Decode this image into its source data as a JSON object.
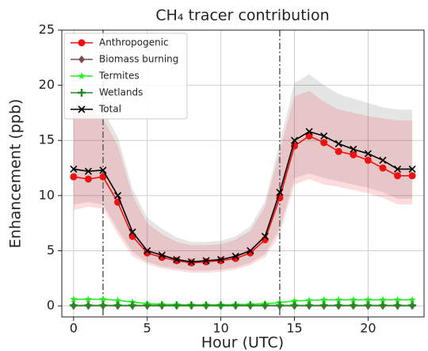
{
  "chart_data": {
    "type": "line",
    "title": "CH₄ tracer contribution",
    "x_label": "Hour (UTC)",
    "y_label": "Enhancement (ppb)",
    "x": [
      0,
      1,
      2,
      3,
      4,
      5,
      6,
      7,
      8,
      9,
      10,
      11,
      12,
      13,
      14,
      15,
      16,
      17,
      18,
      19,
      20,
      21,
      22,
      23
    ],
    "series": [
      {
        "name": "Anthropogenic",
        "color": "#ee1111",
        "marker": "circle",
        "values": [
          11.7,
          11.5,
          11.7,
          9.4,
          6.3,
          4.8,
          4.4,
          4.1,
          3.9,
          4.0,
          4.1,
          4.3,
          4.8,
          6.0,
          9.8,
          14.5,
          15.4,
          14.8,
          14.0,
          13.7,
          13.2,
          12.5,
          11.8,
          11.8
        ],
        "upper": [
          17.5,
          17.5,
          17.0,
          14.5,
          10.0,
          7.5,
          6.5,
          5.8,
          5.5,
          5.5,
          5.6,
          6.0,
          6.8,
          9.0,
          14.0,
          19.0,
          19.5,
          18.5,
          17.8,
          17.5,
          17.2,
          17.0,
          16.8,
          16.8
        ],
        "lower": [
          8.7,
          9.0,
          8.8,
          6.5,
          4.5,
          3.8,
          3.4,
          3.2,
          3.0,
          3.0,
          3.1,
          3.3,
          3.7,
          4.4,
          6.5,
          11.0,
          11.5,
          11.0,
          10.8,
          10.5,
          10.2,
          9.8,
          9.2,
          9.2
        ]
      },
      {
        "name": "Biomass burning",
        "color": "#7f4a4a",
        "marker": "diamond",
        "values": [
          0.02,
          0.02,
          0.02,
          0.02,
          0.02,
          0.02,
          0.02,
          0.02,
          0.02,
          0.02,
          0.02,
          0.02,
          0.02,
          0.02,
          0.02,
          0.02,
          0.02,
          0.02,
          0.02,
          0.02,
          0.02,
          0.02,
          0.02,
          0.02
        ]
      },
      {
        "name": "Termites",
        "color": "#22ee22",
        "marker": "star",
        "values": [
          0.6,
          0.6,
          0.6,
          0.5,
          0.35,
          0.2,
          0.15,
          0.12,
          0.1,
          0.1,
          0.1,
          0.12,
          0.15,
          0.2,
          0.3,
          0.45,
          0.5,
          0.55,
          0.55,
          0.55,
          0.55,
          0.55,
          0.55,
          0.55
        ]
      },
      {
        "name": "Wetlands",
        "color": "#228b22",
        "marker": "plus",
        "values": [
          0.05,
          0.05,
          0.05,
          0.05,
          0.05,
          0.05,
          0.05,
          0.05,
          0.05,
          0.05,
          0.05,
          0.05,
          0.05,
          0.05,
          0.05,
          0.05,
          0.05,
          0.05,
          0.05,
          0.05,
          0.05,
          0.05,
          0.05,
          0.05
        ]
      },
      {
        "name": "Total",
        "color": "#000000",
        "marker": "x",
        "values": [
          12.4,
          12.2,
          12.3,
          10.0,
          6.7,
          5.0,
          4.6,
          4.2,
          4.0,
          4.1,
          4.2,
          4.5,
          5.0,
          6.3,
          10.3,
          15.0,
          15.8,
          15.4,
          14.7,
          14.2,
          13.8,
          13.2,
          12.4,
          12.4
        ],
        "upper": [
          18.2,
          18.2,
          17.8,
          15.3,
          10.6,
          8.0,
          7.0,
          6.2,
          5.8,
          5.8,
          5.9,
          6.3,
          7.2,
          9.5,
          14.8,
          20.2,
          21.0,
          20.0,
          19.2,
          18.8,
          18.4,
          18.0,
          17.8,
          17.8
        ],
        "lower": [
          9.2,
          9.4,
          9.2,
          6.9,
          4.9,
          4.0,
          3.6,
          3.4,
          3.2,
          3.2,
          3.3,
          3.5,
          3.9,
          4.7,
          7.0,
          11.6,
          12.0,
          11.6,
          11.3,
          11.0,
          10.7,
          10.3,
          9.7,
          9.7
        ]
      }
    ],
    "vlines": [
      2,
      14
    ],
    "xlim": [
      -0.8,
      23.8
    ],
    "xticks": [
      0,
      5,
      10,
      15,
      20
    ],
    "ylim": [
      -1,
      25
    ],
    "yticks": [
      0,
      5,
      10,
      15,
      20,
      25
    ],
    "grid": true,
    "legend": "upper left"
  }
}
